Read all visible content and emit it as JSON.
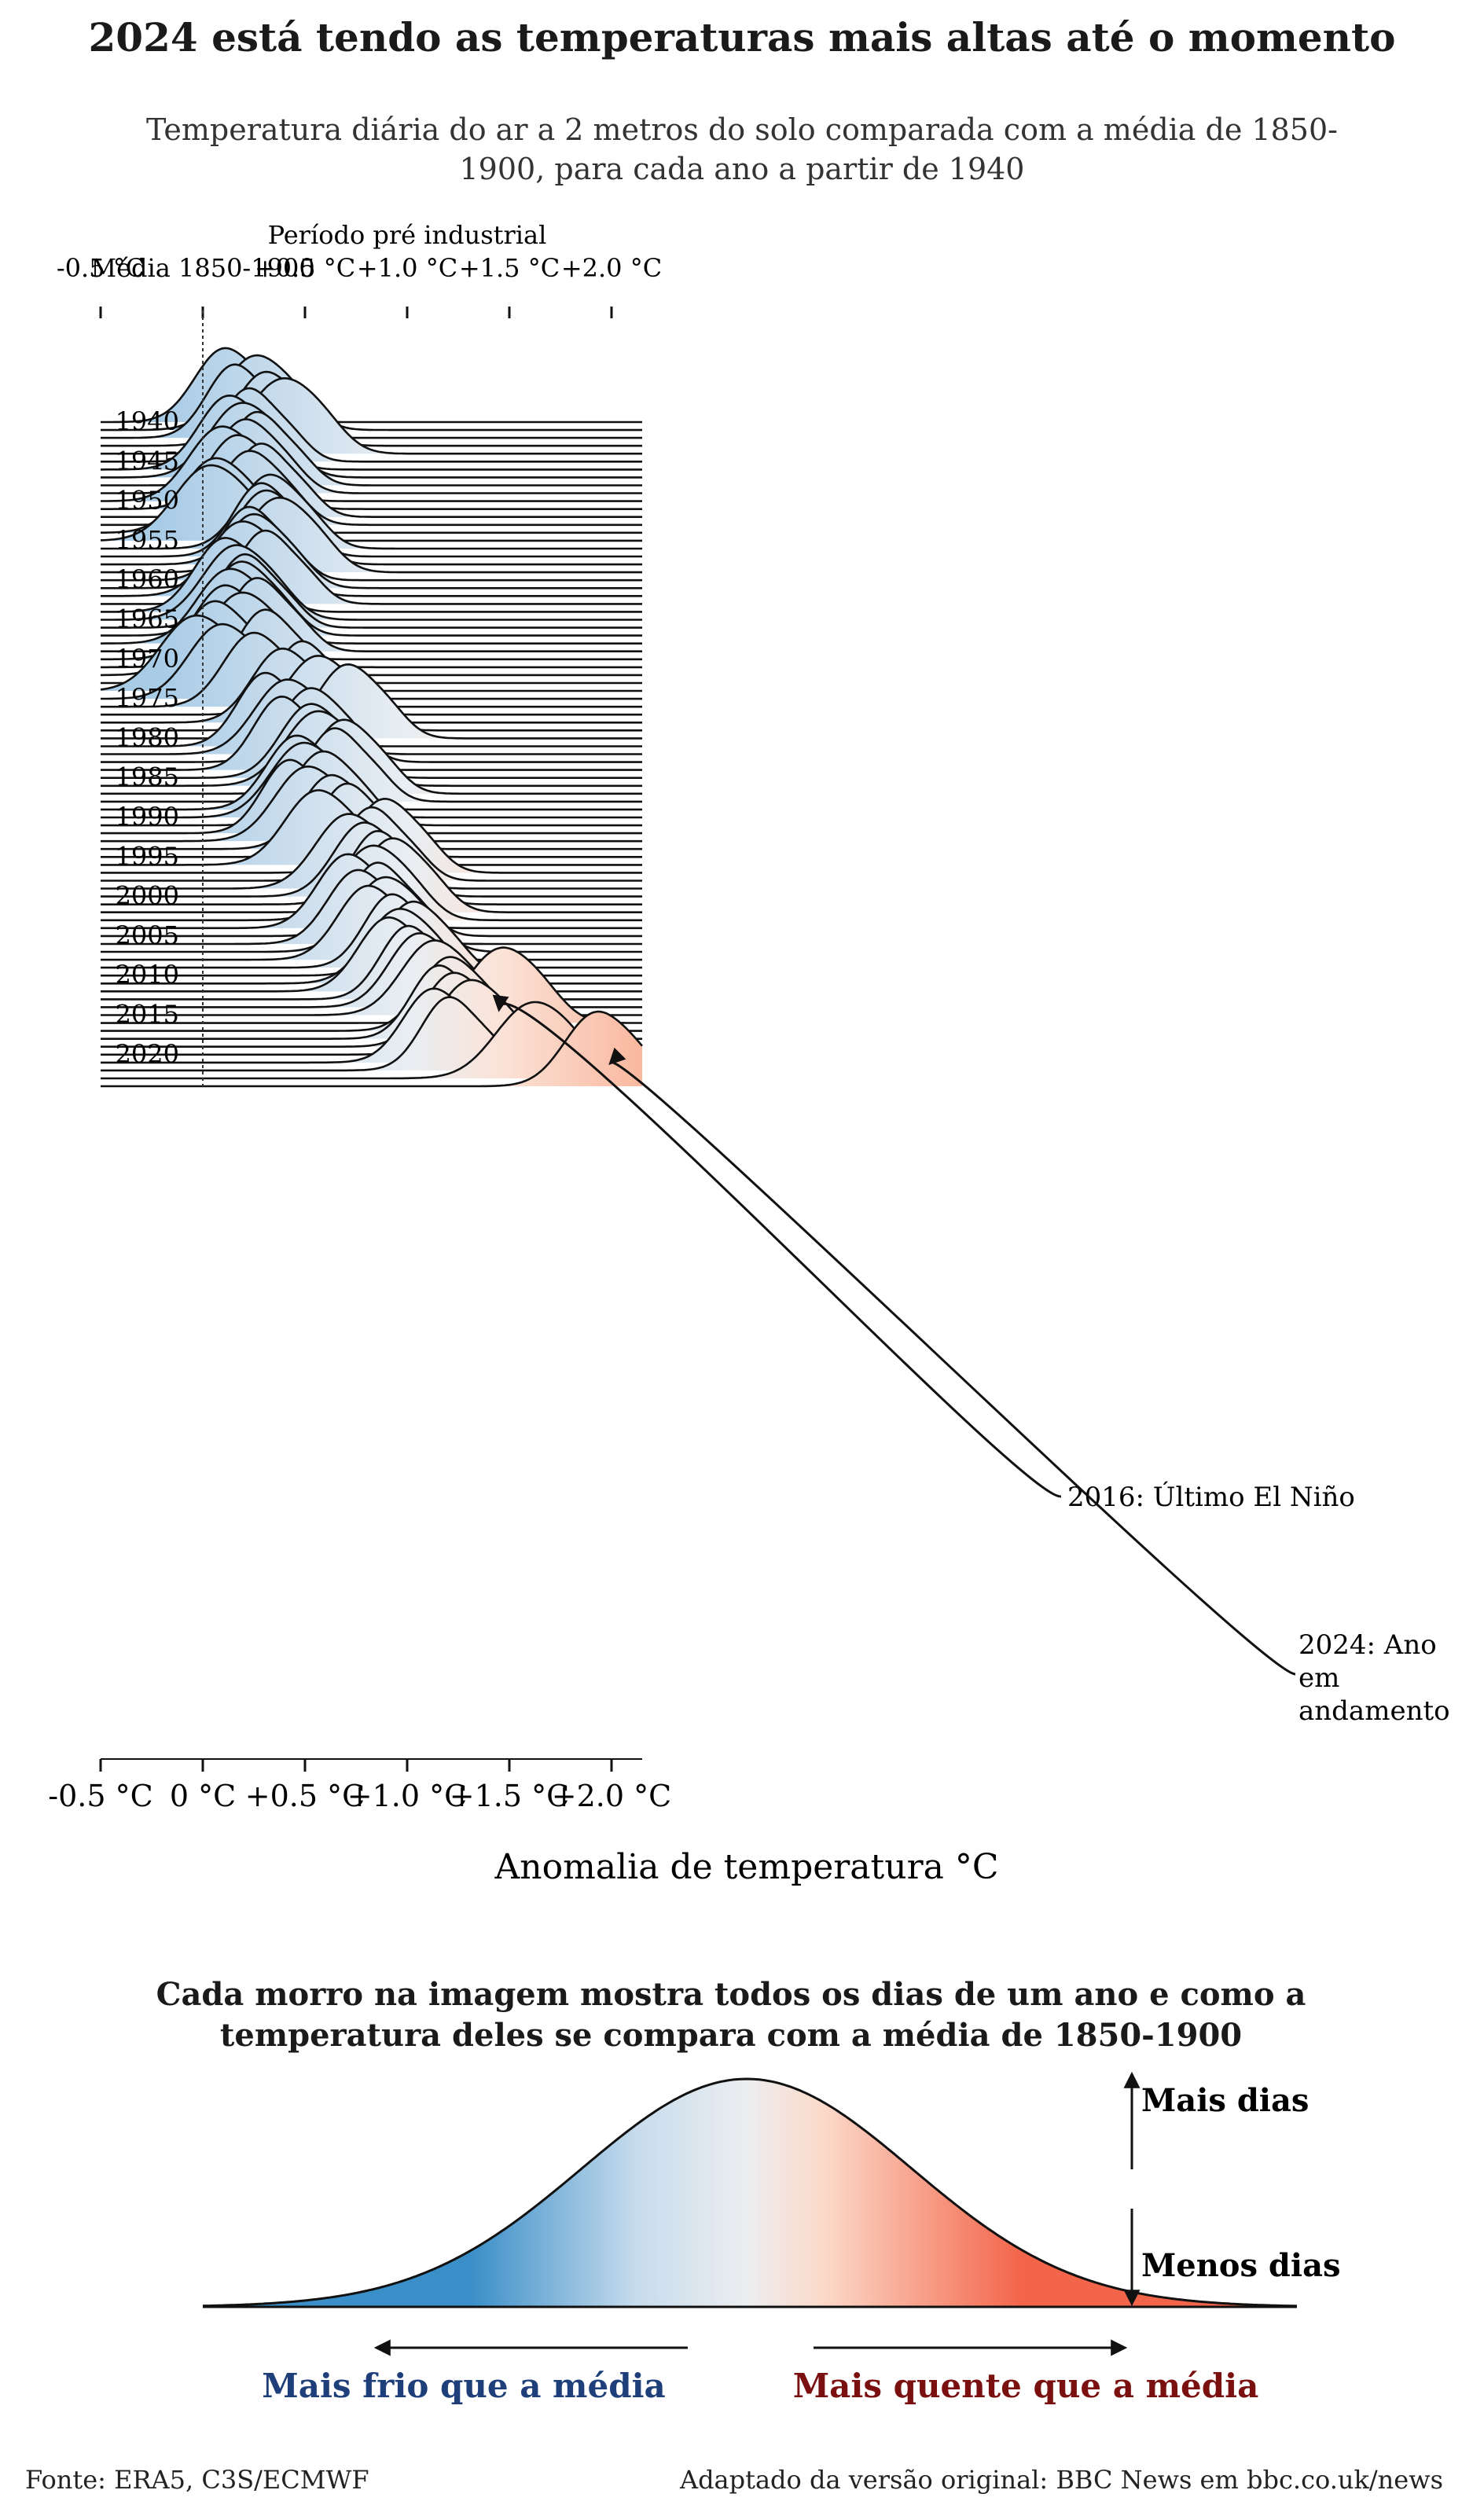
{
  "title": "2024 está tendo as temperaturas mais altas até o momento",
  "subtitle": "Temperatura diária do ar a 2 metros do solo comparada com a média de 1850-1900, para cada ano a partir de 1940",
  "chart_data": {
    "type": "ridgeline",
    "title": "2024 está tendo as temperaturas mais altas até o momento",
    "xlabel": "Anomalia de temperatura °C",
    "xlim": [
      -0.5,
      2.15
    ],
    "x_ticks": [
      -0.5,
      0,
      0.5,
      1.0,
      1.5,
      2.0
    ],
    "x_tick_labels_bottom": [
      "-0.5 °C",
      "0 °C",
      "+0.5 °C",
      "+1.0 °C",
      "+1.5 °C",
      "+2.0 °C"
    ],
    "x_tick_labels_top": [
      "-0.5 °C",
      "Média 1850-1900",
      "+0.5 °C",
      "+1.0 °C",
      "+1.5 °C",
      "+2.0 °C"
    ],
    "top_annotation": "Período pré industrial",
    "baseline_x": 0,
    "years": [
      1940,
      1941,
      1942,
      1943,
      1944,
      1945,
      1946,
      1947,
      1948,
      1949,
      1950,
      1951,
      1952,
      1953,
      1954,
      1955,
      1956,
      1957,
      1958,
      1959,
      1960,
      1961,
      1962,
      1963,
      1964,
      1965,
      1966,
      1967,
      1968,
      1969,
      1970,
      1971,
      1972,
      1973,
      1974,
      1975,
      1976,
      1977,
      1978,
      1979,
      1980,
      1981,
      1982,
      1983,
      1984,
      1985,
      1986,
      1987,
      1988,
      1989,
      1990,
      1991,
      1992,
      1993,
      1994,
      1995,
      1996,
      1997,
      1998,
      1999,
      2000,
      2001,
      2002,
      2003,
      2004,
      2005,
      2006,
      2007,
      2008,
      2009,
      2010,
      2011,
      2012,
      2013,
      2014,
      2015,
      2016,
      2017,
      2018,
      2019,
      2020,
      2021,
      2022,
      2023,
      2024
    ],
    "year_labels": [
      "1940",
      "1945",
      "1950",
      "1955",
      "1960",
      "1965",
      "1970",
      "1975",
      "1980",
      "1985",
      "1990",
      "1995",
      "2000",
      "2005",
      "2010",
      "2015",
      "2020"
    ],
    "peak_anomaly": [
      0.1,
      0.25,
      0.15,
      0.3,
      0.38,
      0.22,
      0.12,
      0.18,
      0.26,
      0.2,
      0.08,
      0.16,
      0.28,
      0.22,
      0.05,
      0.02,
      0.32,
      0.28,
      0.3,
      0.36,
      0.22,
      0.24,
      0.18,
      0.3,
      0.1,
      0.15,
      0.2,
      0.18,
      0.12,
      0.26,
      0.1,
      0.18,
      0.05,
      0.3,
      -0.05,
      0.08,
      0.24,
      0.48,
      0.38,
      0.55,
      0.7,
      0.3,
      0.4,
      0.52,
      0.38,
      0.52,
      0.55,
      0.68,
      0.64,
      0.45,
      0.48,
      0.58,
      0.42,
      0.5,
      0.62,
      0.7,
      0.55,
      0.88,
      0.82,
      0.7,
      0.78,
      0.85,
      0.92,
      0.82,
      0.7,
      0.85,
      0.75,
      0.88,
      0.8,
      0.92,
      1.02,
      0.95,
      0.9,
      1.0,
      1.05,
      1.12,
      1.45,
      1.2,
      1.15,
      1.22,
      1.3,
      1.12,
      1.2,
      1.6,
      1.92
    ],
    "spread": [
      0.14,
      0.15,
      0.13,
      0.14,
      0.16,
      0.13,
      0.14,
      0.15,
      0.13,
      0.14,
      0.15,
      0.14,
      0.13,
      0.14,
      0.15,
      0.16,
      0.14,
      0.13,
      0.14,
      0.15,
      0.13,
      0.14,
      0.15,
      0.13,
      0.14,
      0.15,
      0.13,
      0.14,
      0.15,
      0.13,
      0.14,
      0.15,
      0.14,
      0.13,
      0.16,
      0.15,
      0.14,
      0.13,
      0.14,
      0.15,
      0.14,
      0.13,
      0.15,
      0.14,
      0.13,
      0.14,
      0.15,
      0.14,
      0.13,
      0.14,
      0.15,
      0.14,
      0.13,
      0.15,
      0.14,
      0.13,
      0.15,
      0.14,
      0.13,
      0.15,
      0.14,
      0.13,
      0.14,
      0.15,
      0.14,
      0.13,
      0.14,
      0.15,
      0.14,
      0.13,
      0.14,
      0.15,
      0.14,
      0.13,
      0.14,
      0.15,
      0.16,
      0.14,
      0.13,
      0.14,
      0.15,
      0.14,
      0.13,
      0.17,
      0.15
    ],
    "annotations": [
      {
        "label": "2016: Último El Niño",
        "year": 2016,
        "x": 1.45
      },
      {
        "label": "2024: Ano em andamento",
        "year": 2024,
        "x": 1.92
      }
    ]
  },
  "annotations_text": {
    "elnino": "2016: Último El Niño",
    "current_year_lines": [
      "2024: Ano",
      "em",
      "andamento"
    ]
  },
  "explainer": {
    "title_lines": [
      "Cada morro na imagem mostra todos os dias de um ano e como a",
      "temperatura deles se compara com a média de 1850-1900"
    ],
    "more_days": "Mais dias",
    "fewer_days": "Menos dias",
    "colder": "Mais frio que a média",
    "warmer": "Mais quente que a média",
    "colder_color": "#1f3f7a",
    "warmer_color": "#7a1010"
  },
  "footer": {
    "source": "Fonte: ERA5, C3S/ECMWF",
    "credit": "Adaptado da versão original: BBC News em bbc.co.uk/news"
  },
  "colors": {
    "cold": "#3b8fc8",
    "neutral": "#eeeeee",
    "warm": "#f46a4e",
    "hot": "#8b0a10"
  }
}
